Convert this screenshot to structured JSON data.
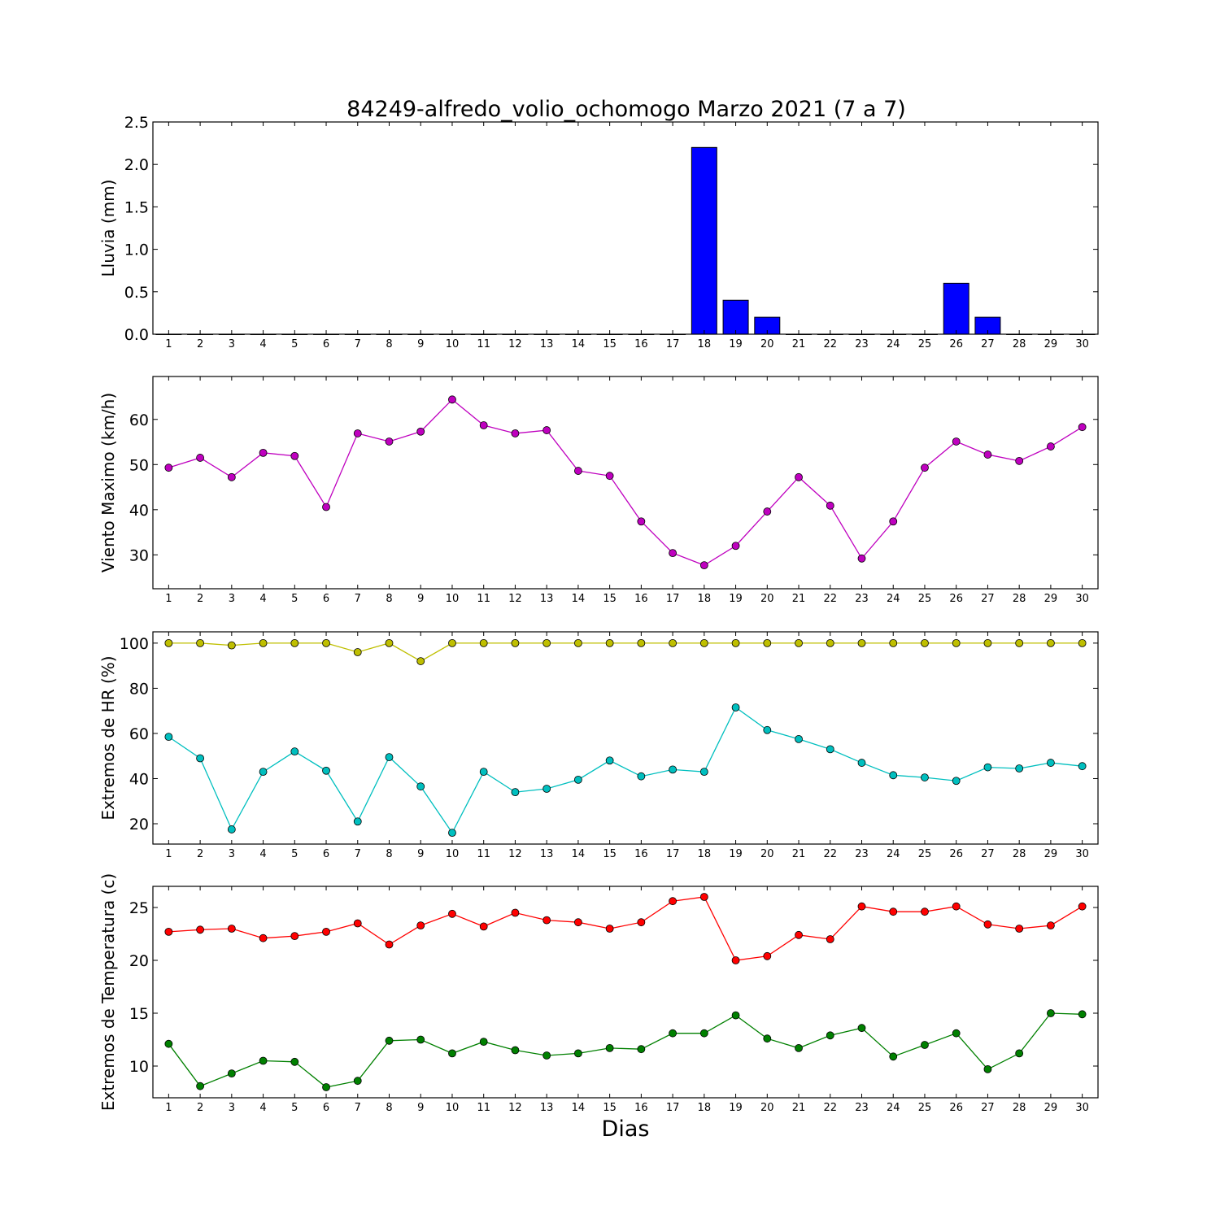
{
  "title": "84249-alfredo_volio_ochomogo Marzo 2021  (7 a 7)",
  "xlabel": "Dias",
  "chart_data": [
    {
      "type": "bar",
      "ylabel": "Lluvia (mm)",
      "ylim": [
        0,
        2.5
      ],
      "yticks": [
        0.0,
        0.5,
        1.0,
        1.5,
        2.0,
        2.5
      ],
      "ytick_labels": [
        "0.0",
        "0.5",
        "1.0",
        "1.5",
        "2.0",
        "2.5"
      ],
      "x": [
        1,
        2,
        3,
        4,
        5,
        6,
        7,
        8,
        9,
        10,
        11,
        12,
        13,
        14,
        15,
        16,
        17,
        18,
        19,
        20,
        21,
        22,
        23,
        24,
        25,
        26,
        27,
        28,
        29,
        30
      ],
      "series": [
        {
          "color": "#0000ff",
          "values": [
            0,
            0,
            0,
            0,
            0,
            0,
            0,
            0,
            0,
            0,
            0,
            0,
            0,
            0,
            0,
            0,
            0,
            2.2,
            0.4,
            0.2,
            0,
            0,
            0,
            0,
            0,
            0.6,
            0.2,
            0,
            0,
            0
          ]
        }
      ]
    },
    {
      "type": "line",
      "ylabel": "Viento Maximo (km/h)",
      "ylim": [
        22.5,
        69.5
      ],
      "yticks": [
        30,
        40,
        50,
        60
      ],
      "ytick_labels": [
        "30",
        "40",
        "50",
        "60"
      ],
      "x": [
        1,
        2,
        3,
        4,
        5,
        6,
        7,
        8,
        9,
        10,
        11,
        12,
        13,
        14,
        15,
        16,
        17,
        18,
        19,
        20,
        21,
        22,
        23,
        24,
        25,
        26,
        27,
        28,
        29,
        30
      ],
      "series": [
        {
          "color": "#bf00bf",
          "values": [
            49.3,
            51.5,
            47.2,
            52.6,
            51.9,
            40.6,
            56.9,
            55.1,
            57.3,
            64.4,
            58.7,
            56.9,
            57.6,
            48.6,
            47.5,
            37.4,
            30.4,
            27.7,
            32,
            39.6,
            47.2,
            40.9,
            29.2,
            37.4,
            49.3,
            55.1,
            52.2,
            50.8,
            54,
            58.3
          ]
        }
      ]
    },
    {
      "type": "line",
      "ylabel": "Extremos de HR (%)",
      "ylim": [
        11,
        105
      ],
      "yticks": [
        20,
        40,
        60,
        80,
        100
      ],
      "ytick_labels": [
        "20",
        "40",
        "60",
        "80",
        "100"
      ],
      "x": [
        1,
        2,
        3,
        4,
        5,
        6,
        7,
        8,
        9,
        10,
        11,
        12,
        13,
        14,
        15,
        16,
        17,
        18,
        19,
        20,
        21,
        22,
        23,
        24,
        25,
        26,
        27,
        28,
        29,
        30
      ],
      "series": [
        {
          "color": "#bfbf00",
          "values": [
            100,
            100,
            99,
            100,
            100,
            100,
            96,
            100,
            92,
            100,
            100,
            100,
            100,
            100,
            100,
            100,
            100,
            100,
            100,
            100,
            100,
            100,
            100,
            100,
            100,
            100,
            100,
            100,
            100,
            100
          ]
        },
        {
          "color": "#00bfbf",
          "values": [
            58.5,
            49,
            17.5,
            43,
            52,
            43.5,
            21,
            49.5,
            36.5,
            16,
            43,
            34,
            35.5,
            39.5,
            48,
            41,
            44,
            43,
            71.5,
            61.5,
            57.5,
            53,
            47,
            41.5,
            40.5,
            39,
            45,
            44.5,
            47,
            45.5
          ]
        }
      ]
    },
    {
      "type": "line",
      "ylabel": "Extremos de Temperatura (c)",
      "ylim": [
        7,
        27
      ],
      "yticks": [
        10,
        15,
        20,
        25
      ],
      "ytick_labels": [
        "10",
        "15",
        "20",
        "25"
      ],
      "x": [
        1,
        2,
        3,
        4,
        5,
        6,
        7,
        8,
        9,
        10,
        11,
        12,
        13,
        14,
        15,
        16,
        17,
        18,
        19,
        20,
        21,
        22,
        23,
        24,
        25,
        26,
        27,
        28,
        29,
        30
      ],
      "series": [
        {
          "color": "#ff0000",
          "values": [
            22.7,
            22.9,
            23,
            22.1,
            22.3,
            22.7,
            23.5,
            21.5,
            23.3,
            24.4,
            23.2,
            24.5,
            23.8,
            23.6,
            23,
            23.6,
            25.6,
            26,
            20,
            20.4,
            22.4,
            22,
            25.1,
            24.6,
            24.6,
            25.1,
            23.4,
            23,
            23.3,
            25.1
          ]
        },
        {
          "color": "#008000",
          "values": [
            12.1,
            8.1,
            9.3,
            10.5,
            10.4,
            8,
            8.6,
            12.4,
            12.5,
            11.2,
            12.3,
            11.5,
            11,
            11.2,
            11.7,
            11.6,
            13.1,
            13.1,
            14.8,
            12.6,
            11.7,
            12.9,
            13.6,
            10.9,
            12,
            13.1,
            9.7,
            11.2,
            15,
            14.9
          ]
        }
      ]
    }
  ]
}
